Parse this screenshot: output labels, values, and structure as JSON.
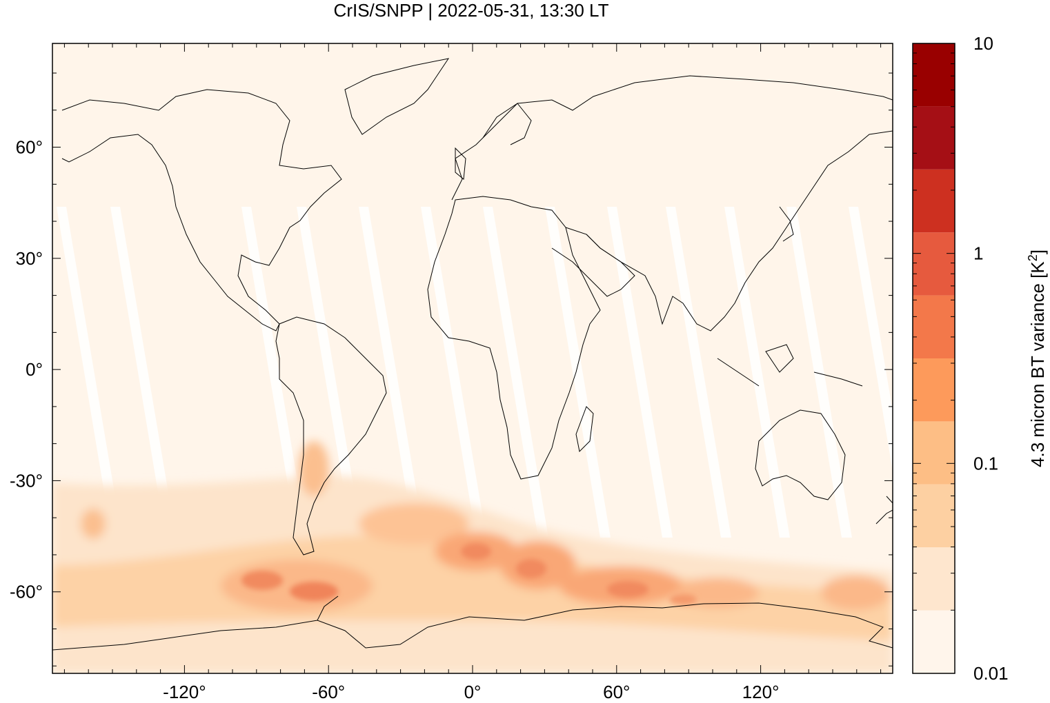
{
  "title": "CrIS/SNPP | 2022-05-31, 13:30 LT",
  "map": {
    "projection": "equirectangular",
    "lon_range": [
      -175,
      175
    ],
    "lat_range": [
      -82,
      88
    ],
    "lat_ticks": [
      {
        "value": 60,
        "label": "60°"
      },
      {
        "value": 30,
        "label": "30°"
      },
      {
        "value": 0,
        "label": "0°"
      },
      {
        "value": -30,
        "label": "-30°"
      },
      {
        "value": -60,
        "label": "-60°"
      }
    ],
    "lon_ticks": [
      {
        "value": -120,
        "label": "-120°"
      },
      {
        "value": -60,
        "label": "-60°"
      },
      {
        "value": 0,
        "label": "0°"
      },
      {
        "value": 60,
        "label": "60°"
      },
      {
        "value": 120,
        "label": "120°"
      }
    ],
    "field": "4.3 micron BT variance",
    "field_description_note": "Variance is low everywhere except a band of enhanced values over the Southern Ocean (~40-70°S) and patches over southern South America.",
    "coastline_color": "#000000",
    "background_color": "#fff5ea",
    "swath_gap_color": "#ffffff"
  },
  "colorbar": {
    "label": "4.3 micron BT variance [K",
    "label_superscript": "2",
    "label_close": "]",
    "scale": "log",
    "min": 0.01,
    "max": 10,
    "tick_labels": [
      {
        "value": 10,
        "label": "10"
      },
      {
        "value": 1,
        "label": "1"
      },
      {
        "value": 0.1,
        "label": "0.1"
      },
      {
        "value": 0.01,
        "label": "0.01"
      }
    ],
    "colors": [
      "#fff5eb",
      "#fee6ce",
      "#fdd0a2",
      "#fdbe85",
      "#fd9a5b",
      "#f3784a",
      "#e65a3e",
      "#cd3020",
      "#a50f15"
    ],
    "top_color": "#990000"
  }
}
